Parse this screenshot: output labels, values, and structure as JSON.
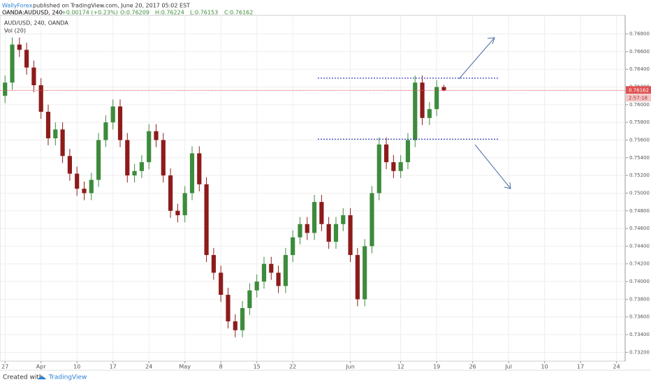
{
  "header": {
    "author": "WallyForex",
    "published": "published on TradingView.com, June 20, 2017 05:02 EST",
    "symbol": "OANDA:AUDUSD, 240",
    "change": "+0.00174 (+0.23%)",
    "open": "O:0.76209",
    "high": "H:0.76224",
    "low": "L:0.76153",
    "close": "C:0.76162"
  },
  "chart_data": {
    "type": "candlestick",
    "title": "AUD/USD, 240, OANDA",
    "indicator": "Vol (20)",
    "x": [
      0,
      1,
      2,
      3,
      4,
      5,
      6,
      7,
      8,
      9,
      10,
      11,
      12,
      13,
      14,
      15,
      16,
      17,
      18,
      19,
      20,
      21,
      22,
      23,
      24,
      25,
      26,
      27,
      28,
      29,
      30,
      31,
      32,
      33,
      34,
      35,
      36,
      37,
      38,
      39,
      40,
      41,
      42,
      43,
      44,
      45,
      46,
      47,
      48,
      49,
      50,
      51,
      52,
      53,
      54,
      55,
      56,
      57,
      58,
      59,
      60,
      61
    ],
    "open": [
      0.761,
      0.7625,
      0.7668,
      0.7662,
      0.7642,
      0.7622,
      0.7592,
      0.7562,
      0.7572,
      0.7542,
      0.7522,
      0.7505,
      0.75,
      0.7515,
      0.756,
      0.758,
      0.7598,
      0.756,
      0.752,
      0.7525,
      0.7535,
      0.757,
      0.756,
      0.752,
      0.748,
      0.7475,
      0.75,
      0.7545,
      0.751,
      0.743,
      0.741,
      0.7385,
      0.7355,
      0.7345,
      0.737,
      0.739,
      0.74,
      0.742,
      0.741,
      0.7395,
      0.743,
      0.745,
      0.7465,
      0.7455,
      0.749,
      0.7465,
      0.7445,
      0.7465,
      0.7475,
      0.743,
      0.738,
      0.744,
      0.75,
      0.7555,
      0.7535,
      0.7525,
      0.7535,
      0.756,
      0.7625,
      0.7585,
      0.7595,
      0.762
    ],
    "high": [
      0.7633,
      0.7676,
      0.7676,
      0.767,
      0.765,
      0.763,
      0.76,
      0.758,
      0.758,
      0.755,
      0.753,
      0.7513,
      0.7523,
      0.7568,
      0.7588,
      0.7606,
      0.7606,
      0.7568,
      0.7533,
      0.7543,
      0.7578,
      0.7578,
      0.7568,
      0.7528,
      0.7488,
      0.7508,
      0.7553,
      0.7553,
      0.7518,
      0.7438,
      0.7418,
      0.7393,
      0.7363,
      0.7378,
      0.7398,
      0.7408,
      0.7428,
      0.7428,
      0.7418,
      0.7438,
      0.7458,
      0.7473,
      0.7473,
      0.7498,
      0.7498,
      0.7473,
      0.7473,
      0.7483,
      0.7483,
      0.7438,
      0.7448,
      0.7508,
      0.7563,
      0.7563,
      0.7543,
      0.7543,
      0.7568,
      0.7633,
      0.7633,
      0.7603,
      0.7628,
      0.76224
    ],
    "low": [
      0.7602,
      0.7617,
      0.7654,
      0.7634,
      0.7614,
      0.7584,
      0.7554,
      0.7554,
      0.7534,
      0.7514,
      0.7497,
      0.7492,
      0.7492,
      0.7507,
      0.7552,
      0.7572,
      0.7552,
      0.7512,
      0.7512,
      0.7517,
      0.7527,
      0.7552,
      0.7512,
      0.7472,
      0.7467,
      0.7467,
      0.7492,
      0.7502,
      0.7422,
      0.7402,
      0.7377,
      0.7347,
      0.7337,
      0.7337,
      0.7362,
      0.7382,
      0.7392,
      0.7402,
      0.7387,
      0.7387,
      0.7422,
      0.7442,
      0.7447,
      0.7447,
      0.7457,
      0.7437,
      0.7437,
      0.7457,
      0.7422,
      0.7372,
      0.7372,
      0.7432,
      0.7492,
      0.7527,
      0.7517,
      0.7517,
      0.7527,
      0.7552,
      0.7577,
      0.7577,
      0.7587,
      0.76153
    ],
    "close": [
      0.7625,
      0.7668,
      0.7662,
      0.7642,
      0.7622,
      0.7592,
      0.7562,
      0.7572,
      0.7542,
      0.7522,
      0.7505,
      0.75,
      0.7515,
      0.756,
      0.758,
      0.7598,
      0.756,
      0.752,
      0.7525,
      0.7535,
      0.757,
      0.756,
      0.752,
      0.748,
      0.7475,
      0.75,
      0.7545,
      0.751,
      0.743,
      0.741,
      0.7385,
      0.7355,
      0.7345,
      0.737,
      0.739,
      0.74,
      0.742,
      0.741,
      0.7395,
      0.743,
      0.745,
      0.7465,
      0.7455,
      0.749,
      0.7465,
      0.7445,
      0.7465,
      0.7475,
      0.743,
      0.738,
      0.744,
      0.75,
      0.7555,
      0.7535,
      0.7525,
      0.7535,
      0.756,
      0.7625,
      0.7585,
      0.7595,
      0.762,
      0.76162
    ],
    "up_color": "#3d8b3d",
    "down_color": "#8e1b1b",
    "xlim": [
      -0.7,
      86.2
    ],
    "xticks": [
      {
        "value": 0,
        "label": "27"
      },
      {
        "value": 5,
        "label": "Apr"
      },
      {
        "value": 10,
        "label": "10"
      },
      {
        "value": 15,
        "label": "17"
      },
      {
        "value": 20,
        "label": "24"
      },
      {
        "value": 25,
        "label": "May"
      },
      {
        "value": 30,
        "label": "8"
      },
      {
        "value": 35,
        "label": "15"
      },
      {
        "value": 40,
        "label": "22"
      },
      {
        "value": 48,
        "label": "Jun"
      },
      {
        "value": 55,
        "label": "12"
      },
      {
        "value": 60,
        "label": "19"
      },
      {
        "value": 65,
        "label": "26"
      },
      {
        "value": 70,
        "label": "Jul"
      },
      {
        "value": 75,
        "label": "10"
      },
      {
        "value": 80,
        "label": "17"
      },
      {
        "value": 85,
        "label": "24"
      }
    ],
    "ylim": [
      0.731,
      0.7701
    ],
    "yticks": [
      {
        "value": 0.768,
        "label": "0.76800"
      },
      {
        "value": 0.766,
        "label": "0.76600"
      },
      {
        "value": 0.764,
        "label": "0.76400"
      },
      {
        "value": 0.762,
        "label": "0.76200"
      },
      {
        "value": 0.76,
        "label": "0.76000"
      },
      {
        "value": 0.758,
        "label": "0.75800"
      },
      {
        "value": 0.756,
        "label": "0.75600"
      },
      {
        "value": 0.754,
        "label": "0.75400"
      },
      {
        "value": 0.752,
        "label": "0.75200"
      },
      {
        "value": 0.75,
        "label": "0.75000"
      },
      {
        "value": 0.748,
        "label": "0.74800"
      },
      {
        "value": 0.746,
        "label": "0.74600"
      },
      {
        "value": 0.744,
        "label": "0.74400"
      },
      {
        "value": 0.742,
        "label": "0.74200"
      },
      {
        "value": 0.74,
        "label": "0.74000"
      },
      {
        "value": 0.738,
        "label": "0.73800"
      },
      {
        "value": 0.736,
        "label": "0.73600"
      },
      {
        "value": 0.734,
        "label": "0.73400"
      },
      {
        "value": 0.732,
        "label": "0.73200"
      }
    ],
    "grid": true,
    "last_price": {
      "value": 0.76162,
      "label": "0.76162"
    },
    "countdown": "2:57:18",
    "last_color": "#e05050",
    "levels": [
      0.763,
      0.7561
    ],
    "level_color": "#3344bb"
  },
  "footer": {
    "created": "Created with",
    "brand": "TradingView"
  }
}
